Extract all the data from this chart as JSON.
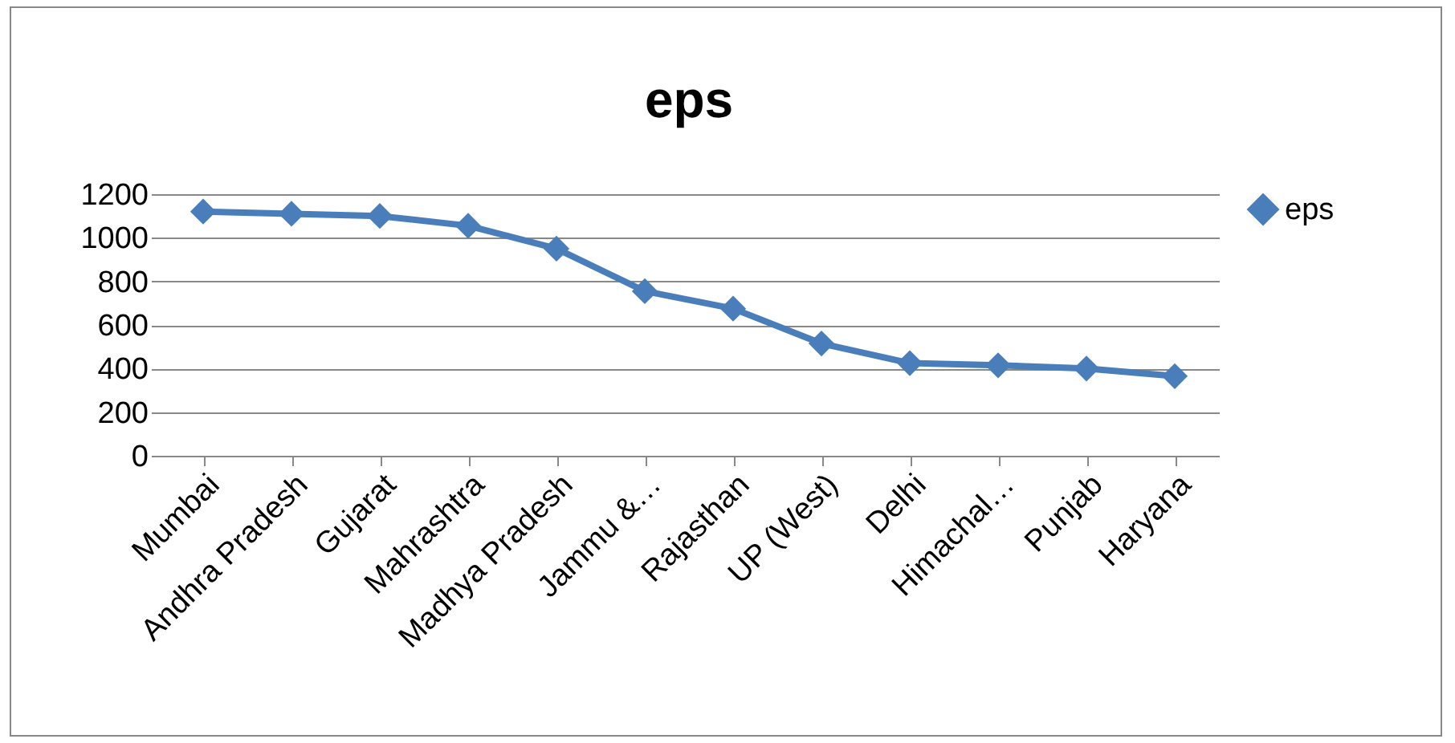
{
  "chart_data": {
    "type": "line",
    "title": "eps",
    "categories": [
      "Mumbai",
      "Andhra Pradesh",
      "Gujarat",
      "Mahrashtra",
      "Madhya Pradesh",
      "Jammu &…",
      "Rajasthan",
      "UP (West)",
      "Delhi",
      "Himachal…",
      "Punjab",
      "Haryana"
    ],
    "series": [
      {
        "name": "eps",
        "color": "#4a7ebb",
        "values": [
          1120,
          1110,
          1100,
          1055,
          950,
          755,
          675,
          515,
          425,
          415,
          400,
          365
        ]
      }
    ],
    "ylim": [
      0,
      1200
    ],
    "yticks": [
      0,
      200,
      400,
      600,
      800,
      1000,
      1200
    ],
    "grid": "y",
    "legend": "right",
    "marker": "diamond",
    "line_style": "solid"
  }
}
